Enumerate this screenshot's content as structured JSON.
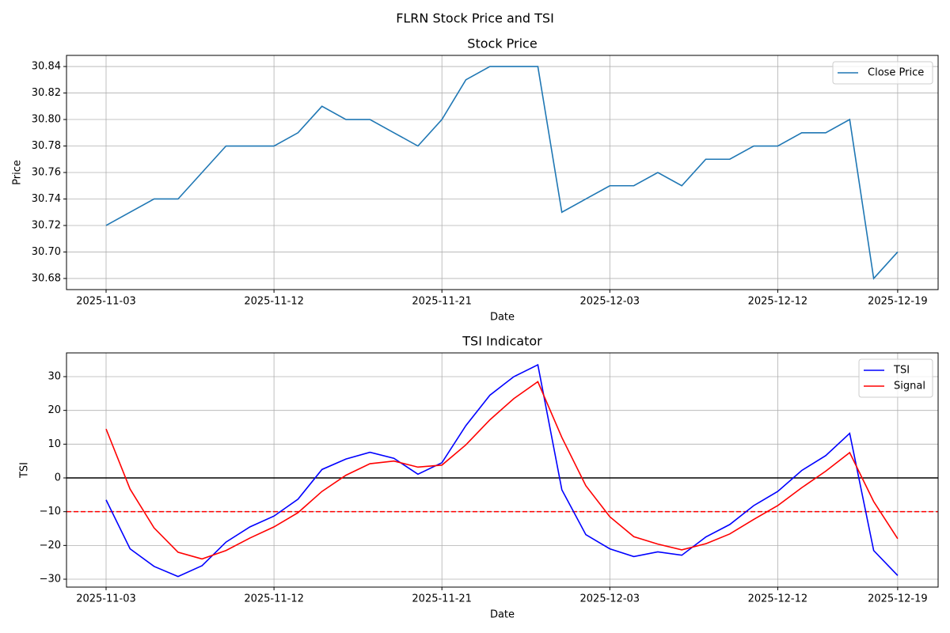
{
  "title": "FLRN Stock Price and TSI",
  "chart_data": [
    {
      "type": "line",
      "title": "Stock Price",
      "x_label": "Date",
      "y_label": "Price",
      "x": [
        "2025-11-03",
        "2025-11-04",
        "2025-11-05",
        "2025-11-06",
        "2025-11-07",
        "2025-11-10",
        "2025-11-11",
        "2025-11-12",
        "2025-11-13",
        "2025-11-14",
        "2025-11-17",
        "2025-11-18",
        "2025-11-19",
        "2025-11-20",
        "2025-11-21",
        "2025-11-24",
        "2025-11-25",
        "2025-11-26",
        "2025-11-28",
        "2025-12-01",
        "2025-12-02",
        "2025-12-03",
        "2025-12-04",
        "2025-12-05",
        "2025-12-08",
        "2025-12-09",
        "2025-12-10",
        "2025-12-11",
        "2025-12-12",
        "2025-12-15",
        "2025-12-16",
        "2025-12-17",
        "2025-12-18",
        "2025-12-19"
      ],
      "xticks": [
        "2025-11-03",
        "2025-11-12",
        "2025-11-21",
        "2025-12-03",
        "2025-12-12",
        "2025-12-19"
      ],
      "series": [
        {
          "name": "Close Price",
          "color": "#1f77b4",
          "values": [
            30.72,
            30.73,
            30.74,
            30.74,
            30.76,
            30.78,
            30.78,
            30.78,
            30.79,
            30.81,
            30.8,
            30.8,
            30.79,
            30.78,
            30.8,
            30.83,
            30.84,
            30.84,
            30.84,
            30.73,
            30.74,
            30.75,
            30.75,
            30.76,
            30.75,
            30.77,
            30.77,
            30.78,
            30.78,
            30.79,
            30.79,
            30.8,
            30.68,
            30.7
          ]
        }
      ],
      "ylim": [
        30.6716,
        30.8484
      ],
      "yticks": [
        30.68,
        {
          "value": 30.7,
          "label": "30.70"
        },
        30.72,
        30.74,
        30.76,
        30.78,
        {
          "value": 30.8,
          "label": "30.80"
        },
        30.82,
        30.84
      ],
      "grid": true,
      "legend": "upper right"
    },
    {
      "type": "line",
      "title": "TSI Indicator",
      "x_label": "Date",
      "y_label": "TSI",
      "x": [
        "2025-11-03",
        "2025-11-04",
        "2025-11-05",
        "2025-11-06",
        "2025-11-07",
        "2025-11-10",
        "2025-11-11",
        "2025-11-12",
        "2025-11-13",
        "2025-11-14",
        "2025-11-17",
        "2025-11-18",
        "2025-11-19",
        "2025-11-20",
        "2025-11-21",
        "2025-11-24",
        "2025-11-25",
        "2025-11-26",
        "2025-11-28",
        "2025-12-01",
        "2025-12-02",
        "2025-12-03",
        "2025-12-04",
        "2025-12-05",
        "2025-12-08",
        "2025-12-09",
        "2025-12-10",
        "2025-12-11",
        "2025-12-12",
        "2025-12-15",
        "2025-12-16",
        "2025-12-17",
        "2025-12-18",
        "2025-12-19"
      ],
      "xticks": [
        "2025-11-03",
        "2025-11-12",
        "2025-11-21",
        "2025-12-03",
        "2025-12-12",
        "2025-12-19"
      ],
      "series": [
        {
          "name": "TSI",
          "color": "#0000ff",
          "values": [
            -6.5,
            -21,
            -26.2,
            -29.2,
            -26,
            -19,
            -14.5,
            -11.3,
            -6.3,
            2.5,
            5.6,
            7.6,
            5.8,
            1.1,
            4.5,
            15.5,
            24.5,
            30,
            33.5,
            -3.5,
            -16.8,
            -21,
            -23.3,
            -21.9,
            -22.9,
            -17.5,
            -13.8,
            -8.2,
            -4,
            2.2,
            6.6,
            13.2,
            -21.5,
            -28.9
          ]
        },
        {
          "name": "Signal",
          "color": "#ff0000",
          "values": [
            14.5,
            -3.3,
            -14.8,
            -22,
            -24,
            -21.5,
            -17.8,
            -14.5,
            -10.3,
            -4,
            0.8,
            4.2,
            5,
            3.2,
            3.8,
            9.8,
            17.2,
            23.5,
            28.5,
            12,
            -2.3,
            -11.5,
            -17.4,
            -19.6,
            -21.3,
            -19.5,
            -16.6,
            -12.3,
            -8.2,
            -2.9,
            2,
            7.5,
            -7,
            -18
          ]
        }
      ],
      "hlines": [
        {
          "value": 0,
          "color": "#000000",
          "style": "solid"
        },
        {
          "value": -10,
          "color": "#ff0000",
          "style": "dashed"
        }
      ],
      "ylim": [
        -32.34,
        37.03
      ],
      "yticks": [
        {
          "value": -30,
          "label": "−30"
        },
        {
          "value": -20,
          "label": "−20"
        },
        {
          "value": -10,
          "label": "−10"
        },
        0,
        10,
        20,
        30
      ],
      "grid": true,
      "legend": "upper right"
    }
  ]
}
